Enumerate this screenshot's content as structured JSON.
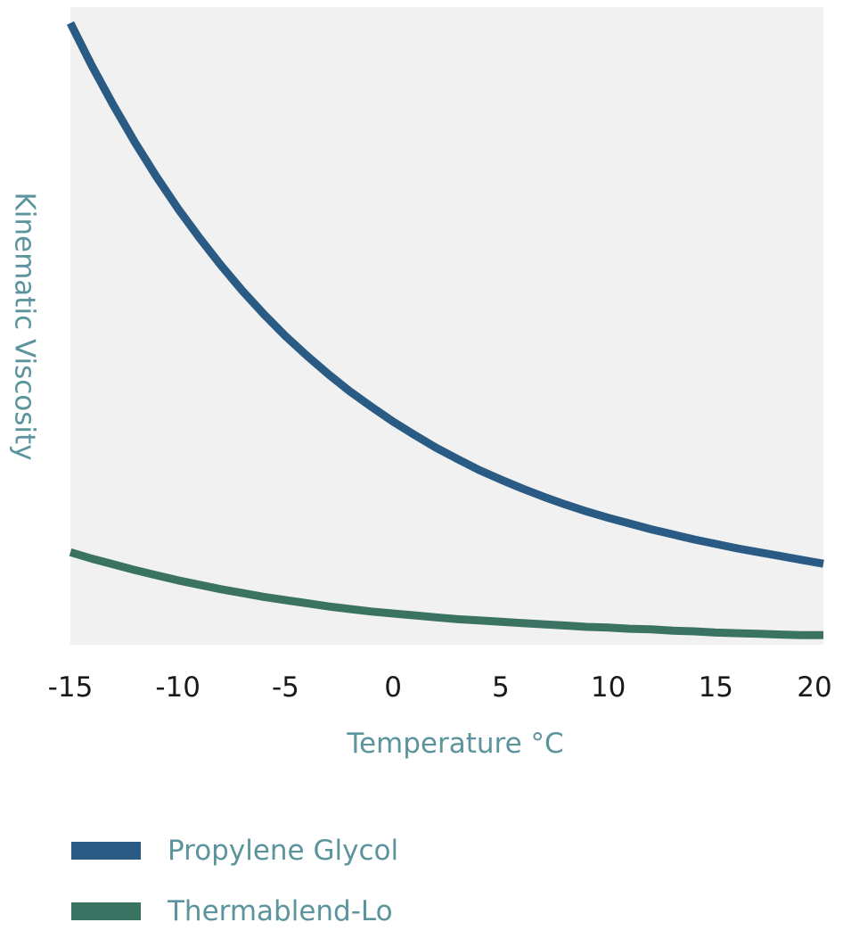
{
  "chart_data": {
    "type": "line",
    "title": "",
    "xlabel": "Temperature °C",
    "ylabel": "Kinematic Viscosity",
    "xlim": [
      -15,
      20
    ],
    "x_ticks": [
      -15,
      -10,
      -5,
      0,
      5,
      10,
      15,
      20
    ],
    "x_tick_labels": [
      "-15",
      "-10",
      "-5",
      "0",
      "5",
      "10",
      "15",
      "20"
    ],
    "ylim": [
      0,
      100
    ],
    "y_ticks_shown": false,
    "grid": false,
    "plot_background": "#f1f1f1",
    "legend_position": "bottom-left",
    "series": [
      {
        "name": "Propylene Glycol",
        "color": "#2a5b84",
        "x": [
          -15,
          -14,
          -13,
          -12,
          -11,
          -10,
          -9,
          -8,
          -7,
          -6,
          -5,
          -4,
          -3,
          -2,
          -1,
          0,
          1,
          2,
          3,
          4,
          5,
          6,
          7,
          8,
          9,
          10,
          11,
          12,
          13,
          14,
          15,
          16,
          17,
          18,
          19,
          20
        ],
        "y": [
          97.5,
          90.8,
          84.6,
          78.8,
          73.4,
          68.4,
          63.8,
          59.5,
          55.5,
          51.8,
          48.4,
          45.3,
          42.4,
          39.7,
          37.3,
          35.0,
          32.9,
          30.9,
          29.1,
          27.4,
          25.9,
          24.5,
          23.2,
          22.0,
          20.9,
          19.9,
          19.0,
          18.1,
          17.3,
          16.5,
          15.8,
          15.1,
          14.5,
          13.9,
          13.3,
          12.7
        ]
      },
      {
        "name": "Thermablend-Lo",
        "color": "#3b7363",
        "x": [
          -15,
          -14,
          -13,
          -12,
          -11,
          -10,
          -9,
          -8,
          -7,
          -6,
          -5,
          -4,
          -3,
          -2,
          -1,
          0,
          1,
          2,
          3,
          4,
          5,
          6,
          7,
          8,
          9,
          10,
          11,
          12,
          13,
          14,
          15,
          16,
          17,
          18,
          19,
          20
        ],
        "y": [
          14.5,
          13.5,
          12.6,
          11.7,
          10.9,
          10.1,
          9.4,
          8.7,
          8.1,
          7.5,
          7.0,
          6.5,
          6.0,
          5.6,
          5.2,
          4.9,
          4.6,
          4.3,
          4.0,
          3.8,
          3.6,
          3.4,
          3.2,
          3.0,
          2.8,
          2.7,
          2.5,
          2.4,
          2.2,
          2.1,
          1.9,
          1.8,
          1.7,
          1.6,
          1.5,
          1.5
        ]
      }
    ]
  }
}
